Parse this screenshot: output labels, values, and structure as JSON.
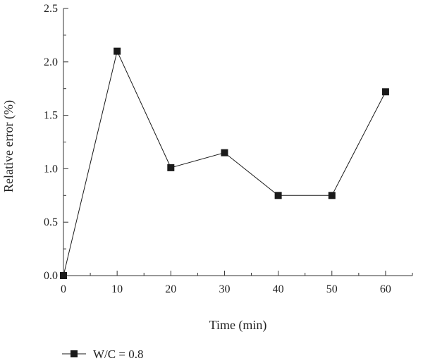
{
  "chart_data": {
    "type": "line",
    "title": "",
    "xlabel": "Time (min)",
    "ylabel": "Relative error (%)",
    "xlim": [
      0,
      65
    ],
    "ylim": [
      0,
      2.5
    ],
    "x_ticks": [
      "0",
      "10",
      "20",
      "30",
      "40",
      "50",
      "60"
    ],
    "y_ticks": [
      "0.0",
      "0.5",
      "1.0",
      "1.5",
      "2.0",
      "2.5"
    ],
    "grid": false,
    "legend_position": "bottom-left",
    "series": [
      {
        "name": "W/C = 0.8",
        "color": "#1a1a1a",
        "marker": "square",
        "x": [
          0,
          10,
          20,
          30,
          40,
          50,
          60
        ],
        "y": [
          0.0,
          2.1,
          1.01,
          1.15,
          0.75,
          0.75,
          1.72
        ]
      }
    ]
  }
}
